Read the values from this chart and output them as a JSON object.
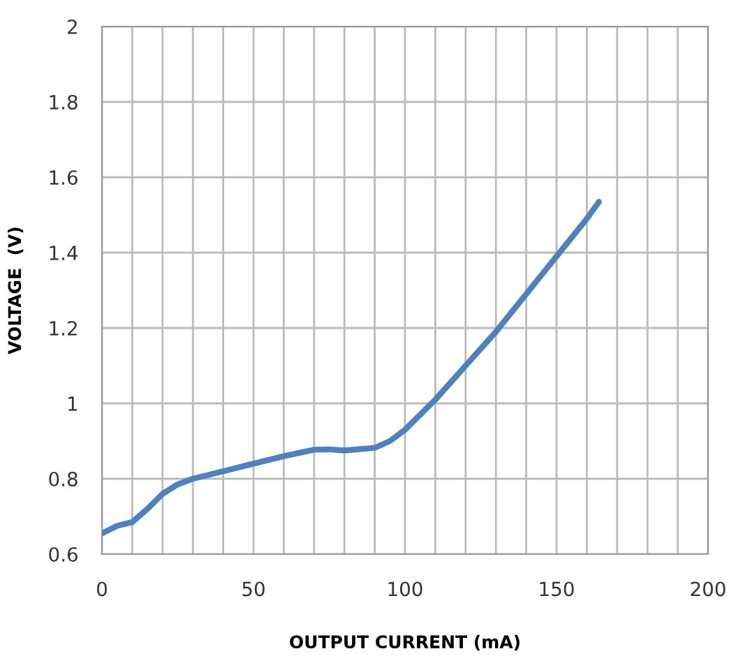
{
  "chart_data": {
    "type": "line",
    "xlabel": "OUTPUT CURRENT (mA)",
    "ylabel": "VOLTAGE  (V)",
    "series": [
      {
        "color": "#4f81bd",
        "x": [
          0,
          5,
          10,
          15,
          20,
          25,
          30,
          40,
          50,
          60,
          70,
          75,
          80,
          90,
          95,
          100,
          105,
          110,
          120,
          130,
          140,
          150,
          160,
          164
        ],
        "values": [
          0.655,
          0.675,
          0.685,
          0.72,
          0.76,
          0.785,
          0.8,
          0.82,
          0.84,
          0.86,
          0.877,
          0.878,
          0.875,
          0.882,
          0.9,
          0.93,
          0.97,
          1.01,
          1.1,
          1.19,
          1.29,
          1.39,
          1.49,
          1.535
        ]
      }
    ],
    "xlim": [
      0,
      200
    ],
    "ylim": [
      0.6,
      2
    ],
    "xticks": [
      0,
      {
        "value": 10,
        "label": null
      },
      {
        "value": 20,
        "label": null
      },
      {
        "value": 30,
        "label": null
      },
      {
        "value": 40,
        "label": null
      },
      50,
      {
        "value": 60,
        "label": null
      },
      {
        "value": 70,
        "label": null
      },
      {
        "value": 80,
        "label": null
      },
      {
        "value": 90,
        "label": null
      },
      100,
      {
        "value": 110,
        "label": null
      },
      {
        "value": 120,
        "label": null
      },
      {
        "value": 130,
        "label": null
      },
      {
        "value": 140,
        "label": null
      },
      150,
      {
        "value": 160,
        "label": null
      },
      {
        "value": 170,
        "label": null
      },
      {
        "value": 180,
        "label": null
      },
      {
        "value": 190,
        "label": null
      },
      200
    ],
    "yticks": [
      0.6,
      0.8,
      1,
      1.2,
      1.4,
      1.6,
      1.8,
      2
    ],
    "grid": true,
    "marker": "none",
    "line_style": "solid"
  }
}
